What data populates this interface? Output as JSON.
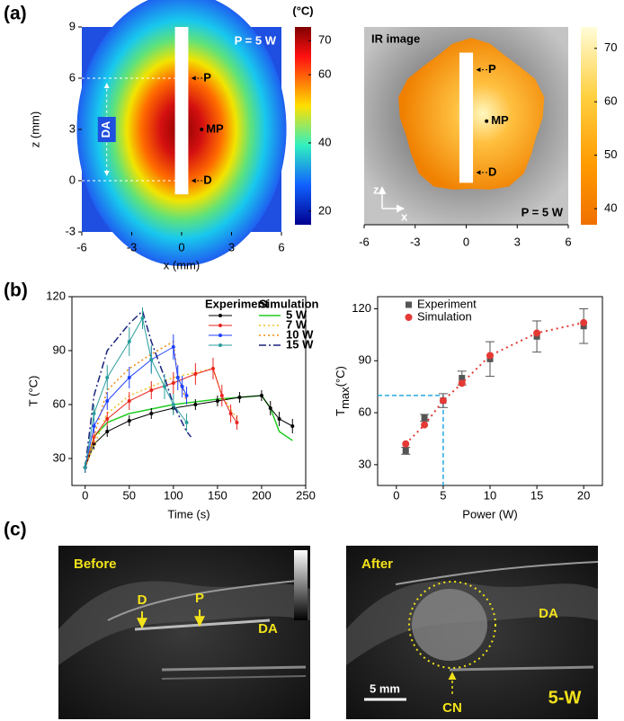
{
  "panel_labels": [
    "(a)",
    "(b)",
    "(c)"
  ],
  "chart_data": [
    {
      "type": "heatmap",
      "annotation": "P = 5 W",
      "markers": [
        "P",
        "MP",
        "D"
      ],
      "region_label": "DA",
      "xlabel": "x (mm)",
      "ylabel": "z (mm)",
      "xlim": [
        -6,
        6
      ],
      "ylim": [
        -3,
        9
      ],
      "xticks": [
        -6,
        -3,
        0,
        3,
        6
      ],
      "yticks": [
        -3,
        0,
        3,
        6,
        9
      ],
      "colorbar_label": "(°C)",
      "colorbar_lim": [
        16,
        74
      ],
      "colorbar_ticks": [
        20,
        40,
        60,
        70
      ]
    },
    {
      "type": "ir-image",
      "title": "IR image",
      "annotation": "P = 5 W",
      "markers": [
        "P",
        "MP",
        "D"
      ],
      "axis_icon": [
        "z",
        "x"
      ],
      "xlim": [
        -6,
        6
      ],
      "xticks": [
        -6,
        -3,
        0,
        3,
        6
      ],
      "colorbar_lim": [
        37,
        74
      ],
      "colorbar_ticks": [
        40,
        50,
        60,
        70
      ]
    },
    {
      "type": "line",
      "xlabel": "Time (s)",
      "ylabel": "T (°C)",
      "xlim": [
        -15,
        250
      ],
      "ylim": [
        15,
        120
      ],
      "xticks": [
        0,
        50,
        100,
        150,
        200,
        250
      ],
      "yticks": [
        30,
        60,
        90,
        120
      ],
      "legend_headers": [
        "Experiment",
        "Simulation"
      ],
      "series": [
        {
          "name": "5 W",
          "experiment": {
            "color": "#000000",
            "x": [
              0,
              10,
              25,
              50,
              75,
              100,
              125,
              150,
              175,
              200,
              210,
              220,
              235
            ],
            "values": [
              25,
              38,
              45,
              51,
              55,
              58,
              60,
              62,
              64,
              65,
              58,
              52,
              48
            ],
            "errors": [
              3,
              3,
              3,
              3,
              3,
              3,
              3,
              3,
              3,
              3,
              4,
              4,
              4
            ]
          },
          "simulation": {
            "color": "#22cc22",
            "dash": "solid",
            "x": [
              0,
              10,
              25,
              50,
              100,
              150,
              200,
              210,
              220,
              235
            ],
            "values": [
              25,
              42,
              50,
              55,
              60,
              63,
              65,
              58,
              45,
              40
            ]
          }
        },
        {
          "name": "7 W",
          "experiment": {
            "color": "#e8251f",
            "x": [
              0,
              10,
              25,
              50,
              75,
              100,
              125,
              145,
              155,
              165,
              172
            ],
            "values": [
              25,
              42,
              52,
              62,
              68,
              72,
              77,
              80,
              65,
              55,
              50
            ],
            "errors": [
              3,
              4,
              4,
              5,
              5,
              6,
              6,
              6,
              6,
              5,
              4
            ]
          },
          "simulation": {
            "color": "#f0c020",
            "dash": "dotted",
            "x": [
              0,
              25,
              50,
              100,
              145,
              155,
              172
            ],
            "values": [
              25,
              55,
              65,
              75,
              80,
              65,
              52
            ]
          }
        },
        {
          "name": "10 W",
          "experiment": {
            "color": "#2040ff",
            "x": [
              0,
              10,
              25,
              50,
              75,
              100,
              105,
              110,
              115
            ],
            "values": [
              25,
              48,
              62,
              75,
              85,
              92,
              75,
              70,
              65
            ],
            "errors": [
              3,
              4,
              5,
              6,
              7,
              7,
              7,
              6,
              5
            ]
          },
          "simulation": {
            "color": "#f08a10",
            "dash": "dotted",
            "x": [
              0,
              25,
              50,
              75,
              100,
              105,
              115
            ],
            "values": [
              25,
              68,
              80,
              88,
              95,
              75,
              62
            ]
          }
        },
        {
          "name": "15 W",
          "experiment": {
            "color": "#2a9d9d",
            "x": [
              0,
              10,
              25,
              50,
              65,
              75,
              90,
              100,
              115
            ],
            "values": [
              25,
              55,
              75,
              95,
              108,
              85,
              70,
              60,
              50
            ],
            "errors": [
              3,
              5,
              7,
              8,
              6,
              8,
              7,
              6,
              5
            ]
          },
          "simulation": {
            "color": "#1a237e",
            "dash": "dashdot",
            "x": [
              0,
              10,
              25,
              50,
              65,
              75,
              90,
              100,
              115,
              120
            ],
            "values": [
              25,
              65,
              90,
              105,
              112,
              95,
              75,
              60,
              45,
              42
            ]
          }
        }
      ]
    },
    {
      "type": "scatter",
      "xlabel": "Power (W)",
      "ylabel": "T",
      "ylabel_sub": "max",
      "ylabel_unit": "(°C)",
      "xlim": [
        -2,
        22
      ],
      "ylim": [
        18,
        127
      ],
      "xticks": [
        0,
        5,
        10,
        15,
        20
      ],
      "yticks": [
        30,
        60,
        90,
        120
      ],
      "x": [
        1,
        3,
        5,
        7,
        10,
        15,
        20
      ],
      "fit_line": true,
      "guide": {
        "x": 5,
        "y": 70
      },
      "series": [
        {
          "name": "Experiment",
          "color": "#555555",
          "marker": "square",
          "values": [
            38,
            57,
            67,
            80,
            91,
            104,
            110
          ],
          "errors": [
            2,
            2,
            4,
            4,
            10,
            9,
            10
          ]
        },
        {
          "name": "Simulation",
          "color": "#e53935",
          "marker": "circle",
          "values": [
            42,
            53,
            67,
            77,
            93,
            106,
            112
          ]
        }
      ]
    }
  ],
  "ultrasound": {
    "before": {
      "title": "Before",
      "labels": [
        "D",
        "P",
        "DA"
      ]
    },
    "after": {
      "title": "After",
      "labels": [
        "DA",
        "CN"
      ],
      "scale_bar": "5 mm",
      "power": "5-W"
    }
  }
}
